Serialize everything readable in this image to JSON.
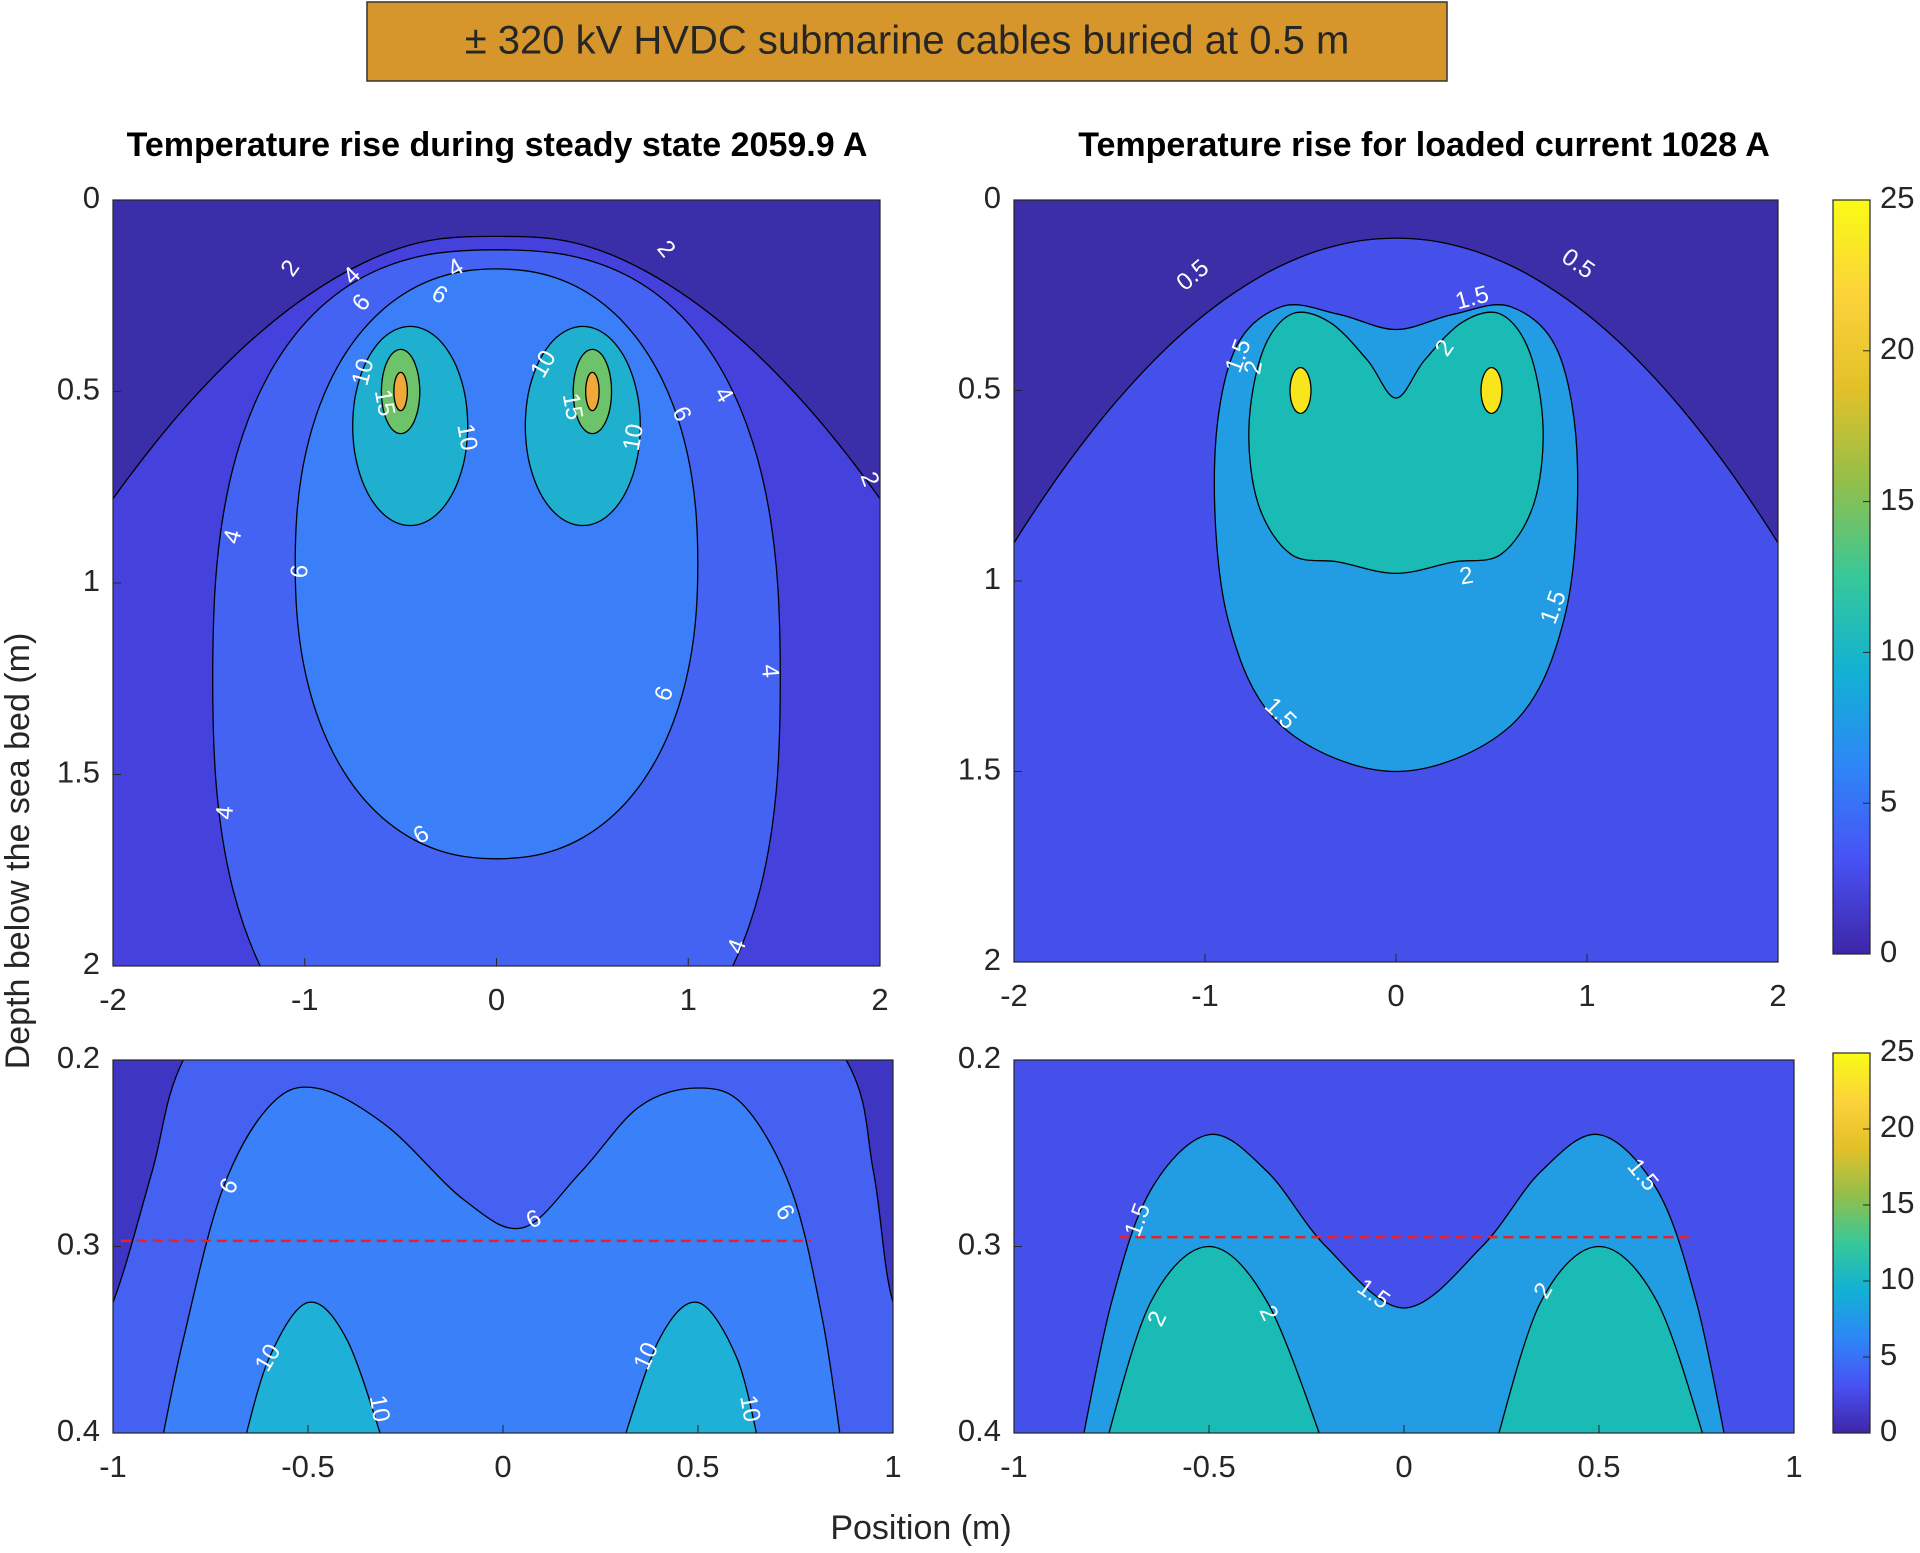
{
  "suptitle": "± 320 kV HVDC submarine cables buried at 0.5 m",
  "ylabel": "Depth below the sea bed (m)",
  "xlabel": "Position (m)",
  "chart_data": [
    {
      "type": "contour",
      "title": "Temperature rise during steady state 2059.9 A",
      "xlim": [
        -2,
        2
      ],
      "xticks": [
        -2,
        -1,
        0,
        1,
        2
      ],
      "ylim": [
        0,
        2
      ],
      "yticks": [
        0,
        0.5,
        1,
        1.5,
        2
      ],
      "y_reversed": true,
      "background_color": "#3a2fa8",
      "levels": [
        2,
        4,
        6,
        10,
        15,
        20
      ],
      "level_colors": [
        "#4541dd",
        "#4463f3",
        "#3a7ff8",
        "#1fb0cf",
        "#6cc36a",
        "#f0a838"
      ]
    },
    {
      "type": "contour",
      "title": "Temperature rise for loaded current 1028 A",
      "xlim": [
        -2,
        2
      ],
      "xticks": [
        -2,
        -1,
        0,
        1,
        2
      ],
      "ylim": [
        0,
        2
      ],
      "yticks": [
        0,
        0.5,
        1,
        1.5,
        2
      ],
      "y_reversed": true,
      "background_color": "#3b2ea6",
      "levels": [
        0.5,
        1.5,
        2,
        20
      ],
      "level_colors": [
        "#4450e9",
        "#229ce2",
        "#1bbbb5",
        "#f8e51c"
      ],
      "colorbar": {
        "clim": [
          0,
          25
        ],
        "ticks": [
          0,
          5,
          10,
          15,
          20,
          25
        ]
      }
    },
    {
      "type": "contour",
      "xlim": [
        -1,
        1
      ],
      "xticks": [
        -1,
        -0.5,
        0,
        0.5,
        1
      ],
      "ylim": [
        0.2,
        0.4
      ],
      "yticks": [
        0.2,
        0.3,
        0.4
      ],
      "y_reversed": true,
      "background_color": "#3e36c2",
      "levels": [
        4,
        6,
        10
      ],
      "level_colors": [
        "#4461f2",
        "#3a80f8",
        "#1fb0d8"
      ],
      "reference_line": {
        "y": 0.297,
        "x": [
          -0.98,
          0.79
        ],
        "color": "#e8202a"
      }
    },
    {
      "type": "contour",
      "xlim": [
        -1,
        1
      ],
      "xticks": [
        -1,
        -0.5,
        0,
        0.5,
        1
      ],
      "ylim": [
        0.2,
        0.4
      ],
      "yticks": [
        0.2,
        0.3,
        0.4
      ],
      "y_reversed": true,
      "background_color": "#4450e9",
      "levels": [
        1.5,
        2
      ],
      "level_colors": [
        "#229ce2",
        "#1bbbb5"
      ],
      "reference_line": {
        "y": 0.295,
        "x": [
          -0.73,
          0.73
        ],
        "color": "#e8202a"
      },
      "colorbar": {
        "clim": [
          0,
          25
        ],
        "ticks": [
          0,
          5,
          10,
          15,
          20,
          25
        ]
      }
    }
  ]
}
